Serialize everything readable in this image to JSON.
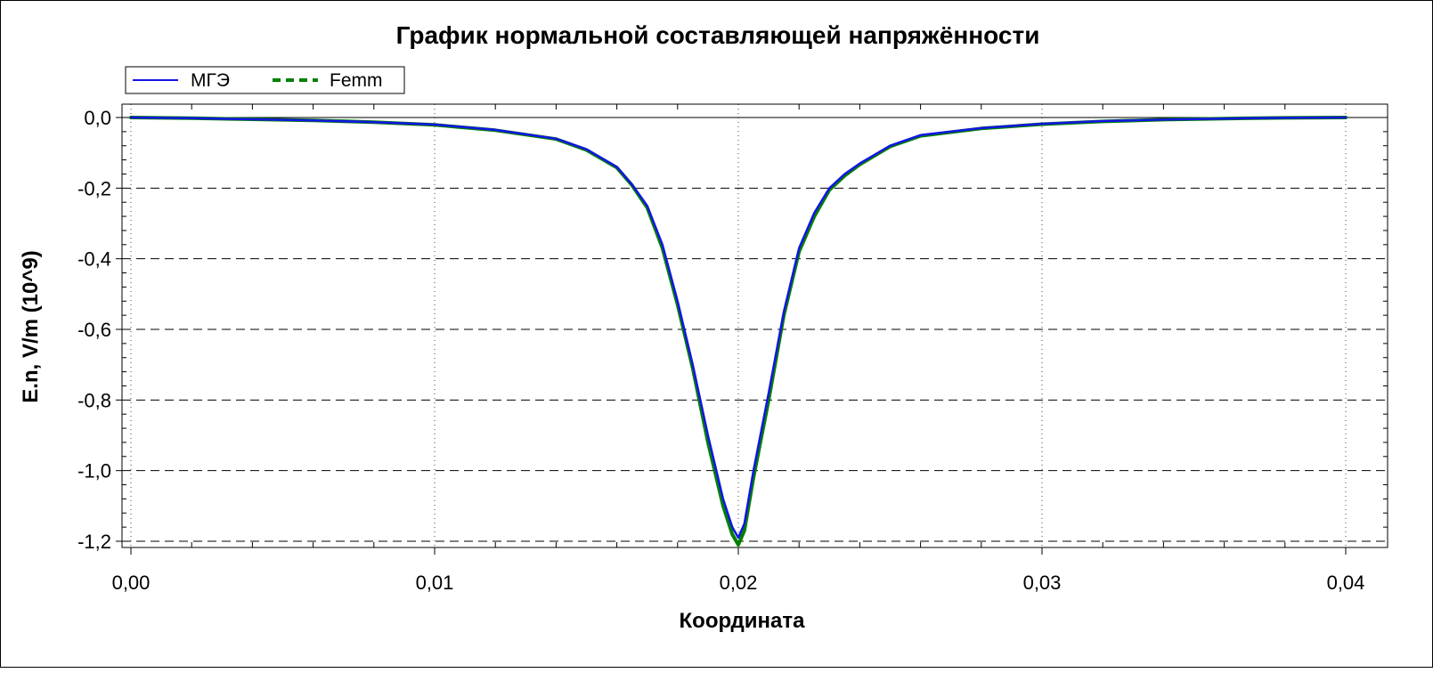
{
  "chart_data": {
    "type": "line",
    "title": "График нормальной составляющей напряжённости",
    "xlabel": "Координата",
    "ylabel": "E.n, V/m (10^9)",
    "xlim": [
      0,
      0.04
    ],
    "ylim": [
      -1.2,
      0.0
    ],
    "x_ticks": [
      "0,00",
      "0,01",
      "0,02",
      "0,03",
      "0,04"
    ],
    "y_ticks": [
      "0,0",
      "-0,2",
      "-0,4",
      "-0,6",
      "-0,8",
      "-1,0",
      "-1,2"
    ],
    "grid": true,
    "legend_position": "top-left",
    "series": [
      {
        "name": "МГЭ",
        "color": "#1414e6",
        "style": "solid",
        "x": [
          0,
          0.002,
          0.004,
          0.006,
          0.008,
          0.01,
          0.012,
          0.014,
          0.015,
          0.016,
          0.0165,
          0.017,
          0.0175,
          0.018,
          0.0185,
          0.019,
          0.0195,
          0.0198,
          0.02,
          0.0202,
          0.0205,
          0.021,
          0.0215,
          0.022,
          0.0225,
          0.023,
          0.0235,
          0.024,
          0.025,
          0.026,
          0.028,
          0.03,
          0.032,
          0.034,
          0.036,
          0.038,
          0.04
        ],
        "y": [
          0,
          -0.002,
          -0.005,
          -0.008,
          -0.013,
          -0.02,
          -0.035,
          -0.06,
          -0.09,
          -0.14,
          -0.19,
          -0.25,
          -0.36,
          -0.52,
          -0.7,
          -0.9,
          -1.08,
          -1.16,
          -1.19,
          -1.15,
          -1.0,
          -0.78,
          -0.55,
          -0.37,
          -0.27,
          -0.2,
          -0.16,
          -0.13,
          -0.08,
          -0.05,
          -0.03,
          -0.018,
          -0.01,
          -0.006,
          -0.003,
          -0.001,
          0
        ]
      },
      {
        "name": "Femm",
        "color": "#008000",
        "style": "dashed",
        "x": [
          0,
          0.002,
          0.004,
          0.006,
          0.008,
          0.01,
          0.012,
          0.014,
          0.015,
          0.016,
          0.0165,
          0.017,
          0.0175,
          0.018,
          0.0185,
          0.019,
          0.0195,
          0.0198,
          0.02,
          0.0202,
          0.0205,
          0.021,
          0.0215,
          0.022,
          0.0225,
          0.023,
          0.0235,
          0.024,
          0.025,
          0.026,
          0.028,
          0.03,
          0.032,
          0.034,
          0.036,
          0.038,
          0.04
        ],
        "y": [
          0,
          -0.002,
          -0.005,
          -0.008,
          -0.013,
          -0.021,
          -0.036,
          -0.061,
          -0.092,
          -0.142,
          -0.192,
          -0.255,
          -0.37,
          -0.53,
          -0.71,
          -0.92,
          -1.1,
          -1.18,
          -1.21,
          -1.17,
          -1.02,
          -0.8,
          -0.56,
          -0.38,
          -0.28,
          -0.205,
          -0.165,
          -0.133,
          -0.082,
          -0.052,
          -0.031,
          -0.019,
          -0.011,
          -0.006,
          -0.003,
          -0.001,
          0
        ]
      }
    ]
  }
}
